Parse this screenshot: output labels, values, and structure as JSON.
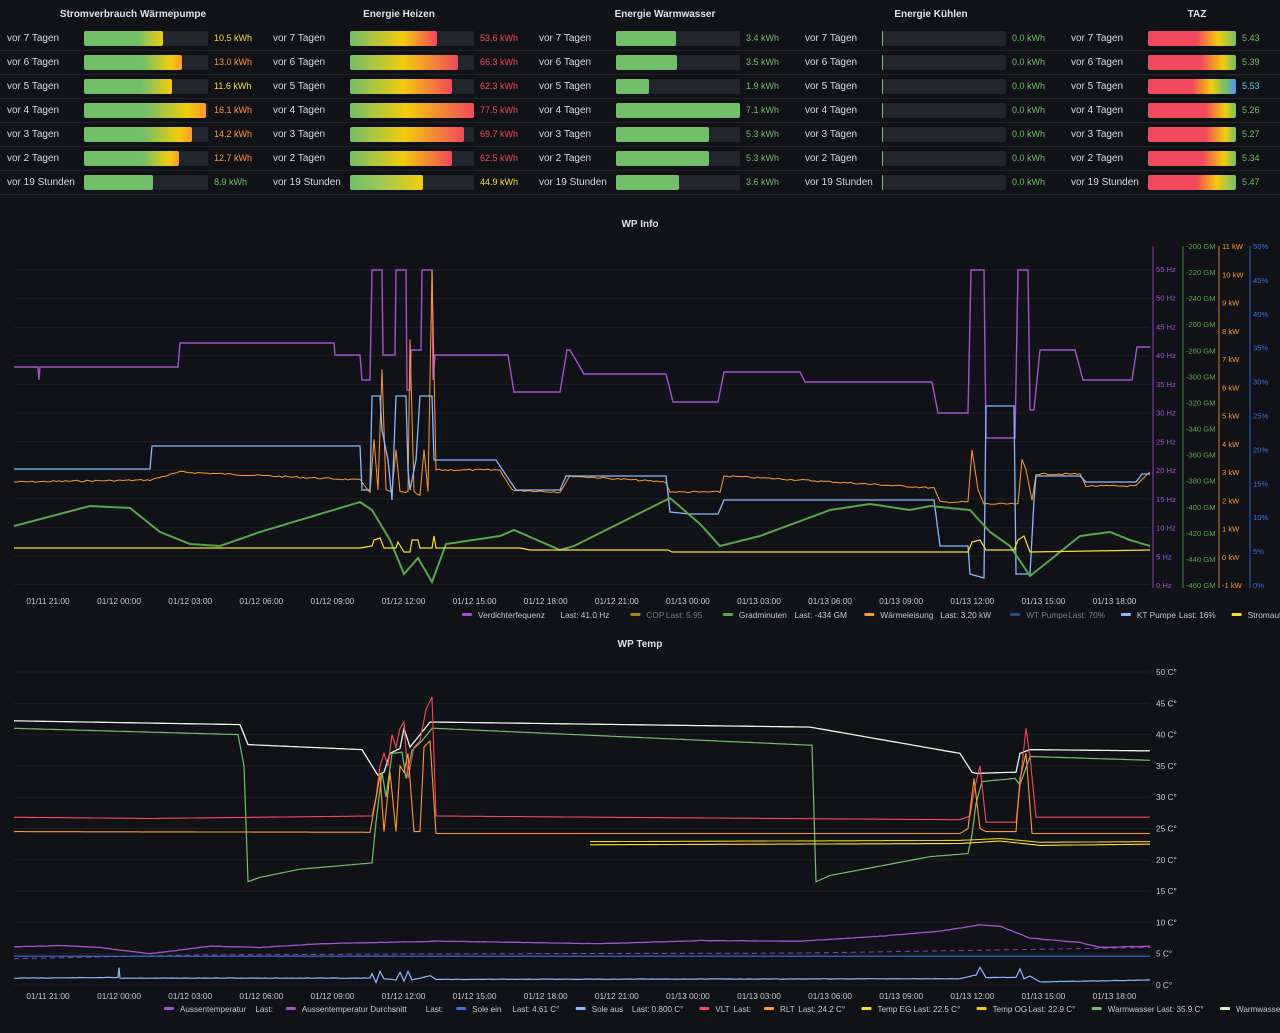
{
  "bar_panels": [
    {
      "title": "Stromverbrauch Wärmepumpe",
      "rows": [
        {
          "label": "vor 7 Tagen",
          "value": "10.5 kWh",
          "pct": 0.64,
          "grad": "linear-gradient(90deg,#73bf69 0%,#73bf69 68%,#f2cc0c 100%)",
          "color": "#fade2a"
        },
        {
          "label": "vor 6 Tagen",
          "value": "13.0 kWh",
          "pct": 0.79,
          "grad": "linear-gradient(90deg,#73bf69 0%,#73bf69 60%,#f2cc0c 88%,#ff9830 100%)",
          "color": "#ff9830"
        },
        {
          "label": "vor 5 Tagen",
          "value": "11.6 kWh",
          "pct": 0.71,
          "grad": "linear-gradient(90deg,#73bf69 0%,#73bf69 65%,#f2cc0c 100%)",
          "color": "#fade2a"
        },
        {
          "label": "vor 4 Tagen",
          "value": "16.1 kWh",
          "pct": 0.98,
          "grad": "linear-gradient(90deg,#73bf69 0%,#73bf69 50%,#f2cc0c 85%,#ff9830 100%)",
          "color": "#ff9830"
        },
        {
          "label": "vor 3 Tagen",
          "value": "14.2 kWh",
          "pct": 0.87,
          "grad": "linear-gradient(90deg,#73bf69 0%,#73bf69 55%,#f2cc0c 88%,#ff9830 100%)",
          "color": "#ff9830"
        },
        {
          "label": "vor 2 Tagen",
          "value": "12.7 kWh",
          "pct": 0.77,
          "grad": "linear-gradient(90deg,#73bf69 0%,#73bf69 62%,#f2cc0c 90%,#ff9830 100%)",
          "color": "#ff9830"
        },
        {
          "label": "vor 19 Stunden",
          "value": "8.9 kWh",
          "pct": 0.56,
          "grad": "linear-gradient(90deg,#73bf69 0%,#73bf69 100%)",
          "color": "#73bf69"
        }
      ]
    },
    {
      "title": "Energie Heizen",
      "rows": [
        {
          "label": "vor 7 Tagen",
          "value": "53.6 kWh",
          "pct": 0.7,
          "grad": "linear-gradient(90deg,#73bf69 0%,#f2cc0c 60%,#f2495c 100%)",
          "color": "#f2495c"
        },
        {
          "label": "vor 6 Tagen",
          "value": "66.3 kWh",
          "pct": 0.87,
          "grad": "linear-gradient(90deg,#73bf69 0%,#f2cc0c 50%,#f2495c 100%)",
          "color": "#f2495c"
        },
        {
          "label": "vor 5 Tagen",
          "value": "62.3 kWh",
          "pct": 0.82,
          "grad": "linear-gradient(90deg,#73bf69 0%,#f2cc0c 52%,#f2495c 100%)",
          "color": "#f2495c"
        },
        {
          "label": "vor 4 Tagen",
          "value": "77.5 kWh",
          "pct": 1.0,
          "grad": "linear-gradient(90deg,#73bf69 0%,#f2cc0c 45%,#f2495c 100%)",
          "color": "#f2495c"
        },
        {
          "label": "vor 3 Tagen",
          "value": "69.7 kWh",
          "pct": 0.92,
          "grad": "linear-gradient(90deg,#73bf69 0%,#f2cc0c 48%,#f2495c 100%)",
          "color": "#f2495c"
        },
        {
          "label": "vor 2 Tagen",
          "value": "62.5 kWh",
          "pct": 0.82,
          "grad": "linear-gradient(90deg,#73bf69 0%,#f2cc0c 52%,#f2495c 100%)",
          "color": "#f2495c"
        },
        {
          "label": "vor 19 Stunden",
          "value": "44.9 kWh",
          "pct": 0.59,
          "grad": "linear-gradient(90deg,#73bf69 0%,#9ac858 40%,#f2cc0c 100%)",
          "color": "#fade2a"
        }
      ]
    },
    {
      "title": "Energie Warmwasser",
      "rows": [
        {
          "label": "vor 7 Tagen",
          "value": "3.4 kWh",
          "pct": 0.48,
          "grad": "linear-gradient(90deg,#73bf69 0%,#73bf69 100%)",
          "color": "#73bf69"
        },
        {
          "label": "vor 6 Tagen",
          "value": "3.5 kWh",
          "pct": 0.49,
          "grad": "linear-gradient(90deg,#73bf69 0%,#73bf69 100%)",
          "color": "#73bf69"
        },
        {
          "label": "vor 5 Tagen",
          "value": "1.9 kWh",
          "pct": 0.27,
          "grad": "linear-gradient(90deg,#73bf69 0%,#73bf69 100%)",
          "color": "#73bf69"
        },
        {
          "label": "vor 4 Tagen",
          "value": "7.1 kWh",
          "pct": 1.0,
          "grad": "linear-gradient(90deg,#73bf69 0%,#73bf69 100%)",
          "color": "#73bf69"
        },
        {
          "label": "vor 3 Tagen",
          "value": "5.3 kWh",
          "pct": 0.75,
          "grad": "linear-gradient(90deg,#73bf69 0%,#73bf69 100%)",
          "color": "#73bf69"
        },
        {
          "label": "vor 2 Tagen",
          "value": "5.3 kWh",
          "pct": 0.75,
          "grad": "linear-gradient(90deg,#73bf69 0%,#73bf69 100%)",
          "color": "#73bf69"
        },
        {
          "label": "vor 19 Stunden",
          "value": "3.6 kWh",
          "pct": 0.51,
          "grad": "linear-gradient(90deg,#73bf69 0%,#73bf69 100%)",
          "color": "#73bf69"
        }
      ]
    },
    {
      "title": "Energie Kühlen",
      "rows": [
        {
          "label": "vor 7 Tagen",
          "value": "0.0 kWh",
          "pct": 0.01,
          "grad": "linear-gradient(90deg,#73bf69 0%,#73bf69 100%)",
          "color": "#73bf69"
        },
        {
          "label": "vor 6 Tagen",
          "value": "0.0 kWh",
          "pct": 0.01,
          "grad": "linear-gradient(90deg,#73bf69 0%,#73bf69 100%)",
          "color": "#73bf69"
        },
        {
          "label": "vor 5 Tagen",
          "value": "0.0 kWh",
          "pct": 0.01,
          "grad": "linear-gradient(90deg,#73bf69 0%,#73bf69 100%)",
          "color": "#73bf69"
        },
        {
          "label": "vor 4 Tagen",
          "value": "0.0 kWh",
          "pct": 0.01,
          "grad": "linear-gradient(90deg,#73bf69 0%,#73bf69 100%)",
          "color": "#73bf69"
        },
        {
          "label": "vor 3 Tagen",
          "value": "0.0 kWh",
          "pct": 0.01,
          "grad": "linear-gradient(90deg,#73bf69 0%,#73bf69 100%)",
          "color": "#73bf69"
        },
        {
          "label": "vor 2 Tagen",
          "value": "0.0 kWh",
          "pct": 0.01,
          "grad": "linear-gradient(90deg,#73bf69 0%,#73bf69 100%)",
          "color": "#73bf69"
        },
        {
          "label": "vor 19 Stunden",
          "value": "0.0 kWh",
          "pct": 0.01,
          "grad": "linear-gradient(90deg,#73bf69 0%,#73bf69 100%)",
          "color": "#73bf69"
        }
      ]
    },
    {
      "title": "TAZ",
      "rows": [
        {
          "label": "vor 7 Tagen",
          "value": "5.43",
          "pct": 1.0,
          "grad": "linear-gradient(90deg,#f2495c 0%,#f2495c 55%,#f2cc0c 80%,#73bf69 100%)",
          "color": "#73bf69"
        },
        {
          "label": "vor 6 Tagen",
          "value": "5.39",
          "pct": 1.0,
          "grad": "linear-gradient(90deg,#f2495c 0%,#f2495c 60%,#f2cc0c 85%,#73bf69 100%)",
          "color": "#73bf69"
        },
        {
          "label": "vor 5 Tagen",
          "value": "5.53",
          "pct": 1.0,
          "grad": "linear-gradient(90deg,#f2495c 0%,#f2495c 50%,#f2cc0c 72%,#73bf69 88%,#5794f2 100%)",
          "color": "#5ad1e0"
        },
        {
          "label": "vor 4 Tagen",
          "value": "5.26",
          "pct": 1.0,
          "grad": "linear-gradient(90deg,#f2495c 0%,#f2495c 65%,#f2cc0c 88%,#73bf69 100%)",
          "color": "#73bf69"
        },
        {
          "label": "vor 3 Tagen",
          "value": "5.27",
          "pct": 1.0,
          "grad": "linear-gradient(90deg,#f2495c 0%,#f2495c 65%,#f2cc0c 88%,#73bf69 100%)",
          "color": "#73bf69"
        },
        {
          "label": "vor 2 Tagen",
          "value": "5.34",
          "pct": 1.0,
          "grad": "linear-gradient(90deg,#f2495c 0%,#f2495c 62%,#f2cc0c 86%,#73bf69 100%)",
          "color": "#73bf69"
        },
        {
          "label": "vor 19 Stunden",
          "value": "5.47",
          "pct": 1.0,
          "grad": "linear-gradient(90deg,#f2495c 0%,#f2495c 55%,#f2cc0c 78%,#73bf69 100%)",
          "color": "#73bf69"
        }
      ]
    }
  ],
  "wp_info": {
    "title": "WP Info",
    "x_ticks": [
      "01/11 21:00",
      "01/12 00:00",
      "01/12 03:00",
      "01/12 06:00",
      "01/12 09:00",
      "01/12 12:00",
      "01/12 15:00",
      "01/12 18:00",
      "01/12 21:00",
      "01/13 00:00",
      "01/13 03:00",
      "01/13 06:00",
      "01/13 09:00",
      "01/13 12:00",
      "01/13 15:00",
      "01/13 18:00"
    ],
    "axes": [
      {
        "name": "hz",
        "color": "#a352cc",
        "ticks": [
          "55 Hz",
          "50 Hz",
          "45 Hz",
          "40 Hz",
          "35 Hz",
          "30 Hz",
          "25 Hz",
          "20 Hz",
          "15 Hz",
          "10 Hz",
          "5 Hz",
          "0 Hz"
        ]
      },
      {
        "name": "gm",
        "color": "#56a64b",
        "ticks": [
          "-200 GM",
          "-220 GM",
          "-240 GM",
          "-260 GM",
          "-280 GM",
          "-300 GM",
          "-320 GM",
          "-340 GM",
          "-360 GM",
          "-380 GM",
          "-400 GM",
          "-420 GM",
          "-440 GM",
          "-460 GM"
        ]
      },
      {
        "name": "kw",
        "color": "#ff9830",
        "ticks": [
          "11 kW",
          "10 kW",
          "9 kW",
          "8 kW",
          "7 kW",
          "6 kW",
          "5 kW",
          "4 kW",
          "3 kW",
          "2 kW",
          "1 kW",
          "0 kW",
          "-1 kW"
        ]
      },
      {
        "name": "pct",
        "color": "#3274d9",
        "ticks": [
          "50%",
          "45%",
          "40%",
          "35%",
          "30%",
          "25%",
          "20%",
          "15%",
          "10%",
          "5%",
          "0%"
        ]
      }
    ],
    "legend": [
      {
        "name": "Verdichterfequenz",
        "last": "Last: 41.0 Hz",
        "color": "#a352cc"
      },
      {
        "name": "COP",
        "last": "Last: 5.95",
        "color": "#fade2a",
        "dim": true
      },
      {
        "name": "Gradminuten",
        "last": "Last: -434 GM",
        "color": "#56a64b"
      },
      {
        "name": "Wärmeleisung",
        "last": "Last: 3.20 kW",
        "color": "#ff9830"
      },
      {
        "name": "WT Pumpe",
        "last": "Last: 70%",
        "color": "#3274d9",
        "dim": true
      },
      {
        "name": "KT Pumpe",
        "last": "Last: 16%",
        "color": "#8ab8ff"
      },
      {
        "name": "Stromaufnahme",
        "last": "Last:",
        "color": "#fade2a"
      }
    ]
  },
  "wp_temp": {
    "title": "WP Temp",
    "x_ticks": [
      "01/11 21:00",
      "01/12 00:00",
      "01/12 03:00",
      "01/12 06:00",
      "01/12 09:00",
      "01/12 12:00",
      "01/12 15:00",
      "01/12 18:00",
      "01/12 21:00",
      "01/13 00:00",
      "01/13 03:00",
      "01/13 06:00",
      "01/13 09:00",
      "01/13 12:00",
      "01/13 15:00",
      "01/13 18:00"
    ],
    "y_ticks": [
      "50 C°",
      "45 C°",
      "40 C°",
      "35 C°",
      "30 C°",
      "25 C°",
      "20 C°",
      "15 C°",
      "10 C°",
      "5 C°",
      "0 C°"
    ],
    "legend": [
      {
        "name": "Aussentemperatur",
        "last": "Last:",
        "color": "#a352cc"
      },
      {
        "name": "Aussentemperatur Durchsnitt",
        "last": "Last:",
        "color": "#a352cc"
      },
      {
        "name": "Sole ein",
        "last": "Last: 4.61 C°",
        "color": "#3274d9"
      },
      {
        "name": "Sole aus",
        "last": "Last: 0.800 C°",
        "color": "#8ab8ff"
      },
      {
        "name": "VLT",
        "last": "Last:",
        "color": "#f2495c"
      },
      {
        "name": "RLT",
        "last": "Last: 24.2 C°",
        "color": "#ff9830"
      },
      {
        "name": "Temp EG",
        "last": "Last: 22.5 C°",
        "color": "#fade2a"
      },
      {
        "name": "Temp OG",
        "last": "Last: 22.9 C°",
        "color": "#f2cc0c"
      },
      {
        "name": "Warmwasser",
        "last": "Last: 35.9 C°",
        "color": "#73bf69"
      },
      {
        "name": "Warmwasser oben",
        "last": "Last:",
        "color": "#c8f2c2"
      }
    ]
  }
}
